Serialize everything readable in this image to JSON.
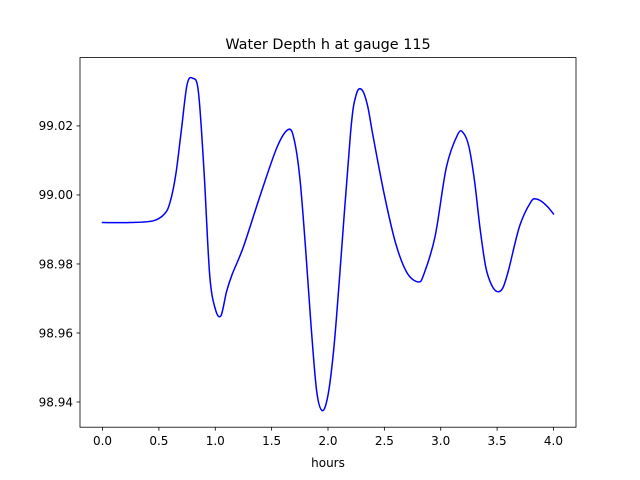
{
  "chart_data": {
    "type": "line",
    "title": "Water Depth h at gauge 115",
    "xlabel": "hours",
    "ylabel": "",
    "xlim": [
      -0.2,
      4.2
    ],
    "ylim": [
      98.9327,
      99.0398
    ],
    "x_ticks": [
      0.0,
      0.5,
      1.0,
      1.5,
      2.0,
      2.5,
      3.0,
      3.5,
      4.0
    ],
    "x_tick_labels": [
      "0.0",
      "0.5",
      "1.0",
      "1.5",
      "2.0",
      "2.5",
      "3.0",
      "3.5",
      "4.0"
    ],
    "y_ticks": [
      98.94,
      98.96,
      98.98,
      99.0,
      99.02
    ],
    "y_tick_labels": [
      "98.94",
      "98.96",
      "98.98",
      "99.00",
      "99.02"
    ],
    "grid": false,
    "color": "#0000ff",
    "series": [
      {
        "x": [
          0.0,
          0.25,
          0.45,
          0.55,
          0.6,
          0.65,
          0.7,
          0.75,
          0.8,
          0.85,
          0.9,
          0.95,
          1.0,
          1.05,
          1.1,
          1.15,
          1.25,
          1.4,
          1.55,
          1.65,
          1.7,
          1.75,
          1.8,
          1.85,
          1.9,
          1.95,
          2.0,
          2.05,
          2.1,
          2.2,
          2.25,
          2.3,
          2.35,
          2.4,
          2.5,
          2.6,
          2.7,
          2.8,
          2.85,
          2.95,
          3.05,
          3.15,
          3.2,
          3.25,
          3.3,
          3.35,
          3.4,
          3.45,
          3.5,
          3.55,
          3.6,
          3.7,
          3.8,
          3.85,
          3.9,
          3.95,
          4.0
        ],
        "y": [
          98.992,
          98.992,
          98.9925,
          98.9945,
          98.998,
          99.006,
          99.019,
          99.032,
          99.0338,
          99.03,
          99.007,
          98.977,
          98.967,
          98.965,
          98.972,
          98.977,
          98.985,
          99.0,
          99.014,
          99.019,
          99.016,
          99.005,
          98.985,
          98.962,
          98.943,
          98.9375,
          98.942,
          98.955,
          98.975,
          99.018,
          99.029,
          99.0305,
          99.026,
          99.017,
          99.0,
          98.986,
          98.9775,
          98.9748,
          98.977,
          98.988,
          99.008,
          99.0175,
          99.018,
          99.014,
          99.004,
          98.99,
          98.979,
          98.974,
          98.972,
          98.973,
          98.978,
          98.991,
          98.998,
          98.9988,
          98.998,
          98.9965,
          98.9945
        ]
      }
    ]
  }
}
